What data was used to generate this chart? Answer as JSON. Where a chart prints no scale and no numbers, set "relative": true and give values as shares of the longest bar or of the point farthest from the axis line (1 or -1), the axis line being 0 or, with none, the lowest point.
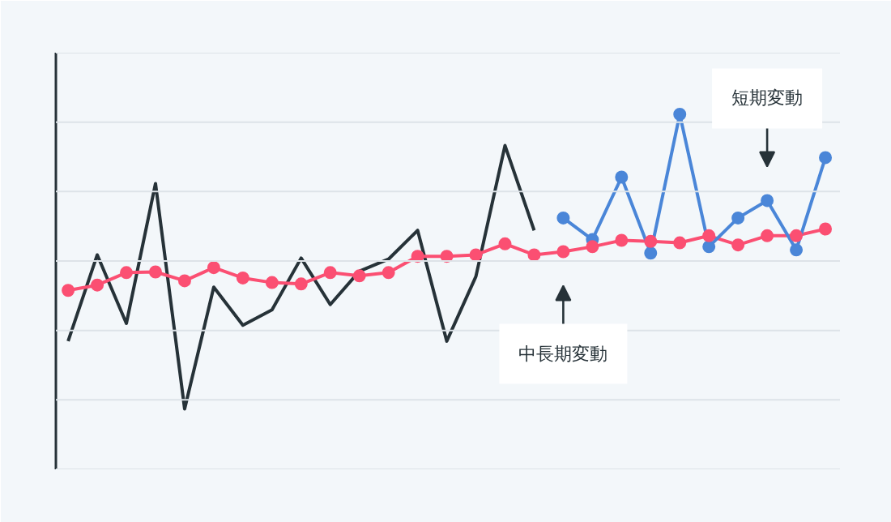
{
  "chart_data": {
    "type": "line",
    "relative": true,
    "grid": "y",
    "categories": [
      null,
      null,
      null,
      null,
      null,
      null,
      null,
      null,
      null,
      null,
      null,
      null,
      null,
      null,
      null,
      null,
      null,
      null,
      null,
      null,
      null,
      null,
      null,
      null,
      null,
      null,
      null
    ],
    "series": [
      {
        "color": "#263238",
        "marker": "none",
        "values": [
          0.361,
          0.604,
          0.411,
          0.805,
          0.17,
          0.513,
          0.406,
          0.449,
          0.595,
          0.464,
          0.558,
          0.592,
          0.673,
          0.361,
          0.543,
          0.912,
          0.673,
          null,
          null,
          null,
          null,
          null,
          null,
          null,
          null,
          null,
          null
        ]
      },
      {
        "name": "中長期変動",
        "color": "#fb4f72",
        "marker": "circle",
        "values": [
          0.504,
          0.519,
          0.554,
          0.556,
          0.531,
          0.568,
          0.539,
          0.526,
          0.522,
          0.554,
          0.545,
          0.554,
          0.6,
          0.6,
          0.604,
          0.635,
          0.604,
          0.613,
          0.627,
          0.645,
          0.642,
          0.638,
          0.658,
          0.632,
          0.658,
          0.658,
          0.677
        ]
      },
      {
        "name": "短期変動",
        "color": "#4a86d8",
        "marker": "circle",
        "values": [
          null,
          null,
          null,
          null,
          null,
          null,
          null,
          null,
          null,
          null,
          null,
          null,
          null,
          null,
          null,
          null,
          null,
          0.708,
          0.647,
          0.823,
          0.609,
          1,
          0.627,
          0.708,
          0.757,
          0.618,
          0.878
        ]
      }
    ]
  }
}
